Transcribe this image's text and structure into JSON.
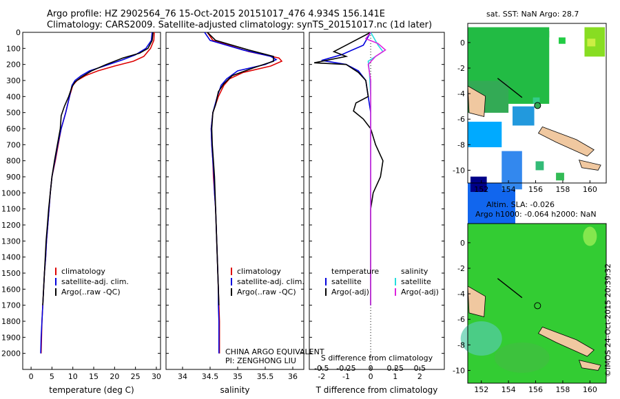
{
  "header": {
    "line1": "Argo profile: HZ 2902564_76 15-Oct-2015 20151017_476 4.934S 156.141E",
    "line2": "Climatology: CARS2009. Satellite-adjusted climatology: synTS_20151017.nc (1d later)"
  },
  "map_top_title": "sat. SST: NaN Argo: 28.7",
  "map_bottom_title1": "Altim. SLA: -0.026",
  "map_bottom_title2": "Argo h1000: -0.064 h2000: NaN",
  "credit": "©IMOS 24-Oct-2015 20:39:32",
  "annotation_line1": "CHINA ARGO EQUIVALENT",
  "annotation_line2": "PI: ZENGHONG LIU",
  "colors": {
    "climatology": "#dd0000",
    "satellite": "#0000dd",
    "argo": "#000000",
    "s_satellite": "#22dddd",
    "s_argo": "#dd22dd"
  },
  "chart_data": [
    {
      "type": "line",
      "xlabel": "temperature (deg C)",
      "ylabel": "",
      "xlim": [
        -2,
        31
      ],
      "ylim": [
        2100,
        0
      ],
      "xticks": [
        "0",
        "5",
        "10",
        "15",
        "20",
        "25",
        "30"
      ],
      "yticks": [
        "0",
        "100",
        "200",
        "300",
        "400",
        "500",
        "600",
        "700",
        "800",
        "900",
        "1000",
        "1100",
        "1200",
        "1300",
        "1400",
        "1500",
        "1600",
        "1700",
        "1800",
        "1900",
        "2000"
      ],
      "legend": [
        "climatology",
        "satellite-adj. clim.",
        "Argo(..raw -QC)"
      ],
      "series": [
        {
          "name": "climatology",
          "color": "#dd0000",
          "points": [
            [
              29.5,
              0
            ],
            [
              29.4,
              50
            ],
            [
              28.6,
              100
            ],
            [
              27.0,
              150
            ],
            [
              24.5,
              180
            ],
            [
              20.0,
              210
            ],
            [
              16.0,
              240
            ],
            [
              13.0,
              270
            ],
            [
              11.0,
              300
            ],
            [
              10.0,
              330
            ],
            [
              9.2,
              400
            ],
            [
              8.3,
              500
            ],
            [
              7.2,
              600
            ],
            [
              6.5,
              700
            ],
            [
              5.8,
              800
            ],
            [
              5.0,
              900
            ],
            [
              4.6,
              1000
            ],
            [
              4.3,
              1100
            ],
            [
              4.0,
              1200
            ],
            [
              3.7,
              1300
            ],
            [
              3.5,
              1400
            ],
            [
              3.2,
              1500
            ],
            [
              3.0,
              1600
            ],
            [
              2.8,
              1700
            ],
            [
              2.6,
              1800
            ],
            [
              2.5,
              1900
            ],
            [
              2.4,
              2000
            ]
          ]
        },
        {
          "name": "satellite-adj. clim.",
          "color": "#0000dd",
          "points": [
            [
              29.0,
              0
            ],
            [
              28.8,
              50
            ],
            [
              27.5,
              100
            ],
            [
              25.0,
              140
            ],
            [
              22.0,
              170
            ],
            [
              17.5,
              210
            ],
            [
              14.0,
              240
            ],
            [
              12.0,
              270
            ],
            [
              10.5,
              300
            ],
            [
              9.8,
              330
            ],
            [
              9.2,
              400
            ],
            [
              8.3,
              500
            ],
            [
              7.2,
              600
            ],
            [
              6.4,
              700
            ],
            [
              5.7,
              800
            ],
            [
              5.0,
              900
            ],
            [
              4.6,
              1000
            ],
            [
              4.3,
              1100
            ],
            [
              4.0,
              1200
            ],
            [
              3.7,
              1300
            ],
            [
              3.5,
              1400
            ],
            [
              3.2,
              1500
            ],
            [
              3.0,
              1600
            ],
            [
              2.8,
              1700
            ],
            [
              2.6,
              1800
            ],
            [
              2.4,
              1900
            ],
            [
              2.3,
              2000
            ]
          ]
        },
        {
          "name": "Argo(..raw -QC)",
          "color": "#000000",
          "points": [
            [
              29.2,
              0
            ],
            [
              29.0,
              50
            ],
            [
              28.0,
              100
            ],
            [
              26.0,
              130
            ],
            [
              22.0,
              160
            ],
            [
              18.0,
              200
            ],
            [
              14.5,
              240
            ],
            [
              12.0,
              280
            ],
            [
              10.5,
              310
            ],
            [
              9.8,
              340
            ],
            [
              9.0,
              400
            ],
            [
              8.0,
              460
            ],
            [
              7.2,
              520
            ],
            [
              7.0,
              600
            ],
            [
              6.3,
              700
            ],
            [
              5.6,
              800
            ],
            [
              5.0,
              900
            ],
            [
              4.6,
              1000
            ],
            [
              4.2,
              1100
            ],
            [
              3.9,
              1200
            ],
            [
              3.6,
              1300
            ],
            [
              3.4,
              1400
            ],
            [
              3.2,
              1500
            ],
            [
              3.0,
              1600
            ],
            [
              2.8,
              1700
            ]
          ]
        }
      ]
    },
    {
      "type": "line",
      "xlabel": "salinity",
      "ylabel": "",
      "xlim": [
        33.7,
        36.2
      ],
      "ylim": [
        2100,
        0
      ],
      "xticks": [
        "34",
        "34.5",
        "35",
        "35.5",
        "36"
      ],
      "legend": [
        "climatology",
        "satellite-adj. clim.",
        "Argo(..raw -QC)"
      ],
      "series": [
        {
          "name": "climatology",
          "color": "#dd0000",
          "points": [
            [
              34.45,
              0
            ],
            [
              34.55,
              50
            ],
            [
              35.2,
              120
            ],
            [
              35.75,
              160
            ],
            [
              35.8,
              180
            ],
            [
              35.6,
              210
            ],
            [
              35.1,
              250
            ],
            [
              34.85,
              290
            ],
            [
              34.75,
              330
            ],
            [
              34.65,
              400
            ],
            [
              34.55,
              500
            ],
            [
              34.52,
              600
            ],
            [
              34.53,
              700
            ],
            [
              34.55,
              800
            ],
            [
              34.56,
              900
            ],
            [
              34.58,
              1000
            ],
            [
              34.6,
              1100
            ],
            [
              34.61,
              1200
            ],
            [
              34.62,
              1300
            ],
            [
              34.63,
              1400
            ],
            [
              34.64,
              1500
            ],
            [
              34.65,
              1600
            ],
            [
              34.66,
              1700
            ],
            [
              34.67,
              1800
            ],
            [
              34.67,
              1900
            ],
            [
              34.67,
              2000
            ]
          ]
        },
        {
          "name": "satellite-adj. clim.",
          "color": "#0000dd",
          "points": [
            [
              34.4,
              0
            ],
            [
              34.5,
              50
            ],
            [
              35.1,
              110
            ],
            [
              35.6,
              150
            ],
            [
              35.7,
              170
            ],
            [
              35.5,
              200
            ],
            [
              35.0,
              240
            ],
            [
              34.8,
              290
            ],
            [
              34.7,
              330
            ],
            [
              34.63,
              400
            ],
            [
              34.55,
              500
            ],
            [
              34.52,
              600
            ],
            [
              34.53,
              700
            ],
            [
              34.55,
              800
            ],
            [
              34.57,
              900
            ],
            [
              34.58,
              1000
            ],
            [
              34.6,
              1100
            ],
            [
              34.61,
              1200
            ],
            [
              34.62,
              1300
            ],
            [
              34.63,
              1400
            ],
            [
              34.64,
              1500
            ],
            [
              34.65,
              1600
            ],
            [
              34.65,
              1700
            ],
            [
              34.66,
              1800
            ],
            [
              34.66,
              1900
            ],
            [
              34.66,
              2000
            ]
          ]
        },
        {
          "name": "Argo(..raw -QC)",
          "color": "#000000",
          "points": [
            [
              34.45,
              0
            ],
            [
              34.6,
              50
            ],
            [
              35.2,
              110
            ],
            [
              35.65,
              150
            ],
            [
              35.65,
              180
            ],
            [
              35.3,
              220
            ],
            [
              34.9,
              270
            ],
            [
              34.75,
              320
            ],
            [
              34.65,
              370
            ],
            [
              34.6,
              450
            ],
            [
              34.55,
              500
            ],
            [
              34.53,
              600
            ],
            [
              34.54,
              700
            ],
            [
              34.56,
              800
            ],
            [
              34.58,
              900
            ],
            [
              34.59,
              1000
            ],
            [
              34.6,
              1100
            ],
            [
              34.61,
              1200
            ],
            [
              34.62,
              1300
            ],
            [
              34.63,
              1400
            ],
            [
              34.64,
              1500
            ],
            [
              34.65,
              1600
            ],
            [
              34.66,
              1700
            ]
          ]
        }
      ]
    },
    {
      "type": "line",
      "xlabel": "T difference from climatology",
      "xlabel_top": "S difference from climatology",
      "ylabel": "",
      "xlim": [
        -2.5,
        3
      ],
      "ylim": [
        2100,
        0
      ],
      "xticks": [
        "-2",
        "-1",
        "0",
        "1",
        "2"
      ],
      "xticks_top": [
        "-0.5",
        "-0.25",
        "0",
        "0.25",
        "0.5"
      ],
      "legend_left_title": "temperature",
      "legend_right_title": "salinity",
      "legend": [
        "satellite",
        "Argo(-adj)",
        "satellite",
        "Argo(-adj)"
      ],
      "series": [
        {
          "name": "satellite",
          "color": "#0000dd",
          "points": [
            [
              0,
              0
            ],
            [
              -0.3,
              80
            ],
            [
              -1.2,
              140
            ],
            [
              -2.0,
              175
            ],
            [
              -1.0,
              200
            ],
            [
              -0.5,
              240
            ],
            [
              -0.2,
              300
            ],
            [
              -0.1,
              400
            ],
            [
              0,
              500
            ],
            [
              0,
              700
            ],
            [
              0,
              1000
            ],
            [
              0,
              1400
            ],
            [
              0,
              1700
            ]
          ]
        },
        {
          "name": "Argo(-adj)",
          "color": "#000000",
          "points": [
            [
              0,
              0
            ],
            [
              -1.5,
              120
            ],
            [
              -1.0,
              150
            ],
            [
              -2.3,
              190
            ],
            [
              -1.0,
              200
            ],
            [
              -0.5,
              250
            ],
            [
              -0.2,
              300
            ],
            [
              -0.1,
              400
            ],
            [
              -0.6,
              440
            ],
            [
              -0.7,
              490
            ],
            [
              -0.3,
              540
            ],
            [
              0,
              600
            ],
            [
              0.2,
              700
            ],
            [
              0.5,
              800
            ],
            [
              0.4,
              900
            ],
            [
              0.1,
              1000
            ],
            [
              0,
              1100
            ],
            [
              0,
              1400
            ],
            [
              0,
              1700
            ]
          ]
        },
        {
          "name": "satellite",
          "color": "#22dddd",
          "points": [
            [
              0,
              0
            ],
            [
              0.3,
              80
            ],
            [
              0.5,
              120
            ],
            [
              -0.1,
              180
            ],
            [
              -0.05,
              250
            ],
            [
              0,
              400
            ],
            [
              0,
              800
            ],
            [
              0,
              1200
            ],
            [
              0,
              1700
            ]
          ]
        },
        {
          "name": "Argo(-adj)",
          "color": "#dd22dd",
          "points": [
            [
              0,
              0
            ],
            [
              -0.2,
              40
            ],
            [
              0.3,
              70
            ],
            [
              0.6,
              110
            ],
            [
              0.2,
              150
            ],
            [
              -0.1,
              200
            ],
            [
              0,
              300
            ],
            [
              0,
              400
            ],
            [
              0,
              800
            ],
            [
              0,
              1200
            ],
            [
              0,
              1700
            ]
          ]
        }
      ]
    }
  ],
  "maps": [
    {
      "xticks": [
        "152",
        "154",
        "156",
        "158",
        "160"
      ],
      "yticks": [
        "0",
        "-2",
        "-4",
        "-6",
        "-8",
        "-10"
      ]
    },
    {
      "xticks": [
        "152",
        "154",
        "156",
        "158",
        "160"
      ],
      "yticks": [
        "0",
        "-2",
        "-4",
        "-6",
        "-8",
        "-10"
      ]
    }
  ]
}
